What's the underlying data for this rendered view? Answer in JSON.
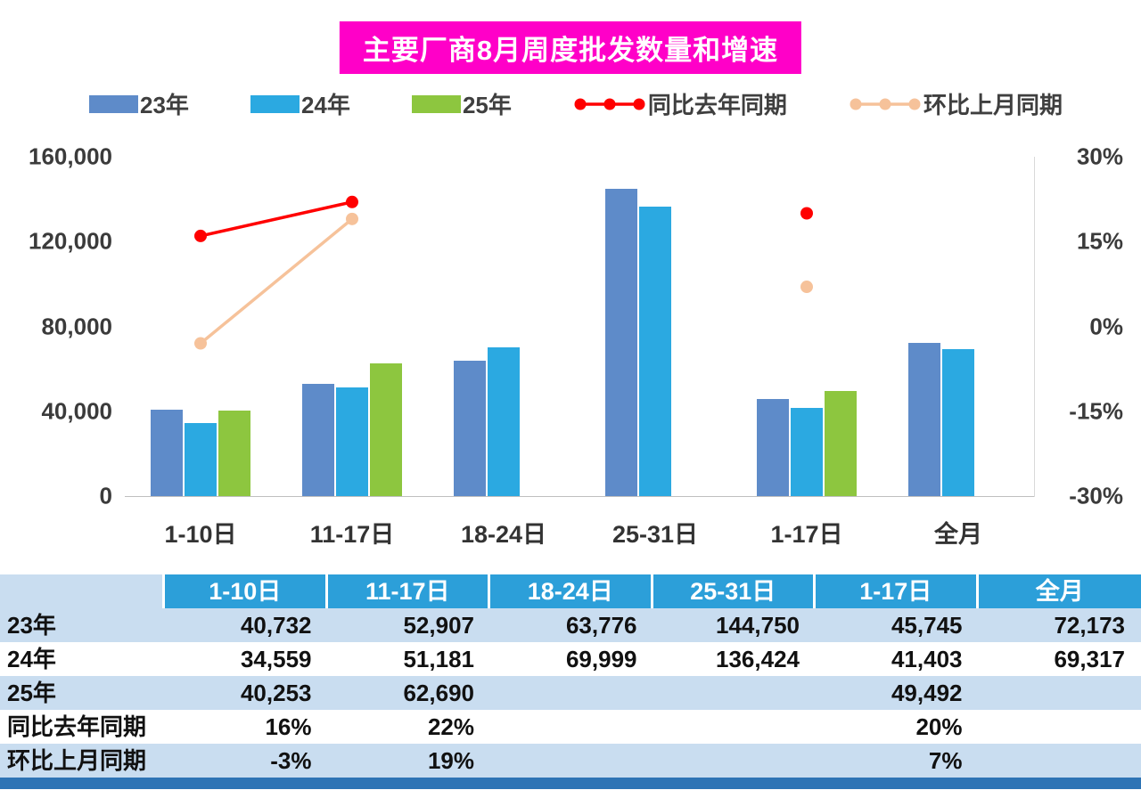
{
  "title": "主要厂商8月周度批发数量和增速",
  "legend": [
    {
      "label": "23年",
      "type": "bar",
      "color": "#5e8bc9"
    },
    {
      "label": "24年",
      "type": "bar",
      "color": "#2ba9e1"
    },
    {
      "label": "25年",
      "type": "bar",
      "color": "#8dc63f"
    },
    {
      "label": "同比去年同期",
      "type": "line",
      "color": "#ff0000"
    },
    {
      "label": "环比上月同期",
      "type": "line",
      "color": "#f6c29a"
    }
  ],
  "chart_data": {
    "type": "bar",
    "title": "主要厂商8月周度批发数量和增速",
    "categories": [
      "1-10日",
      "11-17日",
      "18-24日",
      "25-31日",
      "1-17日",
      "全月"
    ],
    "bar_series": [
      {
        "name": "23年",
        "color": "#5e8bc9",
        "values": [
          40732,
          52907,
          63776,
          144750,
          45745,
          72173
        ]
      },
      {
        "name": "24年",
        "color": "#2ba9e1",
        "values": [
          34559,
          51181,
          69999,
          136424,
          41403,
          69317
        ]
      },
      {
        "name": "25年",
        "color": "#8dc63f",
        "values": [
          40253,
          62690,
          null,
          null,
          49492,
          null
        ]
      }
    ],
    "line_series": [
      {
        "name": "同比去年同期",
        "color": "#ff0000",
        "values": [
          16,
          22,
          null,
          null,
          20,
          null
        ]
      },
      {
        "name": "环比上月同期",
        "color": "#f6c29a",
        "values": [
          -3,
          19,
          null,
          null,
          7,
          null
        ]
      }
    ],
    "left_axis": {
      "ticks": [
        "160,000",
        "120,000",
        "80,000",
        "40,000",
        "0"
      ],
      "max": 160000,
      "min": 0
    },
    "right_axis": {
      "ticks": [
        "30%",
        "15%",
        "0%",
        "-15%",
        "-30%"
      ],
      "max": 30,
      "min": -30
    },
    "legend_position": "top",
    "grid": false
  },
  "table": {
    "header": [
      "",
      "1-10日",
      "11-17日",
      "18-24日",
      "25-31日",
      "1-17日",
      "全月"
    ],
    "rows": [
      {
        "label": "23年",
        "values": [
          "40,732",
          "52,907",
          "63,776",
          "144,750",
          "45,745",
          "72,173"
        ]
      },
      {
        "label": "24年",
        "values": [
          "34,559",
          "51,181",
          "69,999",
          "136,424",
          "41,403",
          "69,317"
        ]
      },
      {
        "label": "25年",
        "values": [
          "40,253",
          "62,690",
          "",
          "",
          "49,492",
          ""
        ]
      },
      {
        "label": "同比去年同期",
        "values": [
          "16%",
          "22%",
          "",
          "",
          "20%",
          ""
        ]
      },
      {
        "label": "环比上月同期",
        "values": [
          "-3%",
          "19%",
          "",
          "",
          "7%",
          ""
        ]
      }
    ]
  },
  "colors": {
    "title_bg": "#ff00c8",
    "title_text": "#ffffff",
    "bar_23": "#5e8bc9",
    "bar_24": "#2ba9e1",
    "bar_25": "#8dc63f",
    "line_yoy": "#ff0000",
    "line_mom": "#f6c29a",
    "table_header_bg": "#2c9fd9",
    "table_stripe": "#c9ddf0",
    "bottom_bar": "#2e74b5"
  }
}
